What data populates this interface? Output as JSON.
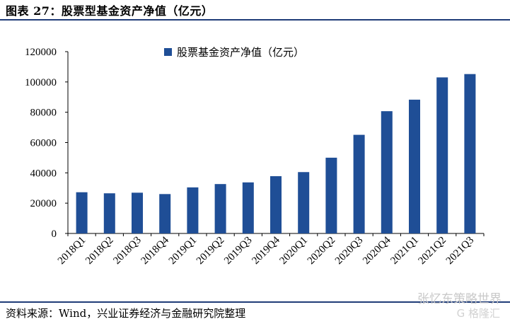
{
  "figure": {
    "title": "图表 27：股票型基金资产净值（亿元）",
    "source": "资料来源：Wind，兴业证券经济与金融研究院整理",
    "watermark": "张忆东策略世界",
    "watermark_sub": "G 格隆汇"
  },
  "chart_data": {
    "type": "bar",
    "title": "",
    "xlabel": "",
    "ylabel": "",
    "categories": [
      "2018Q1",
      "2018Q2",
      "2018Q3",
      "2018Q4",
      "2019Q1",
      "2019Q2",
      "2019Q3",
      "2019Q4",
      "2020Q1",
      "2020Q2",
      "2020Q3",
      "2020Q4",
      "2021Q1",
      "2021Q2",
      "2021Q3"
    ],
    "series": [
      {
        "name": "股票基金资产净值（亿元）",
        "color": "#1f4e96",
        "values": [
          27200,
          26500,
          26900,
          26000,
          30400,
          32600,
          33700,
          37800,
          40500,
          50000,
          65100,
          80700,
          88300,
          103000,
          105200
        ]
      }
    ],
    "ylim": [
      0,
      120000
    ],
    "yticks": [
      "0",
      "20000",
      "40000",
      "60000",
      "80000",
      "100000",
      "120000"
    ],
    "legend": "top-left",
    "grid": false
  }
}
